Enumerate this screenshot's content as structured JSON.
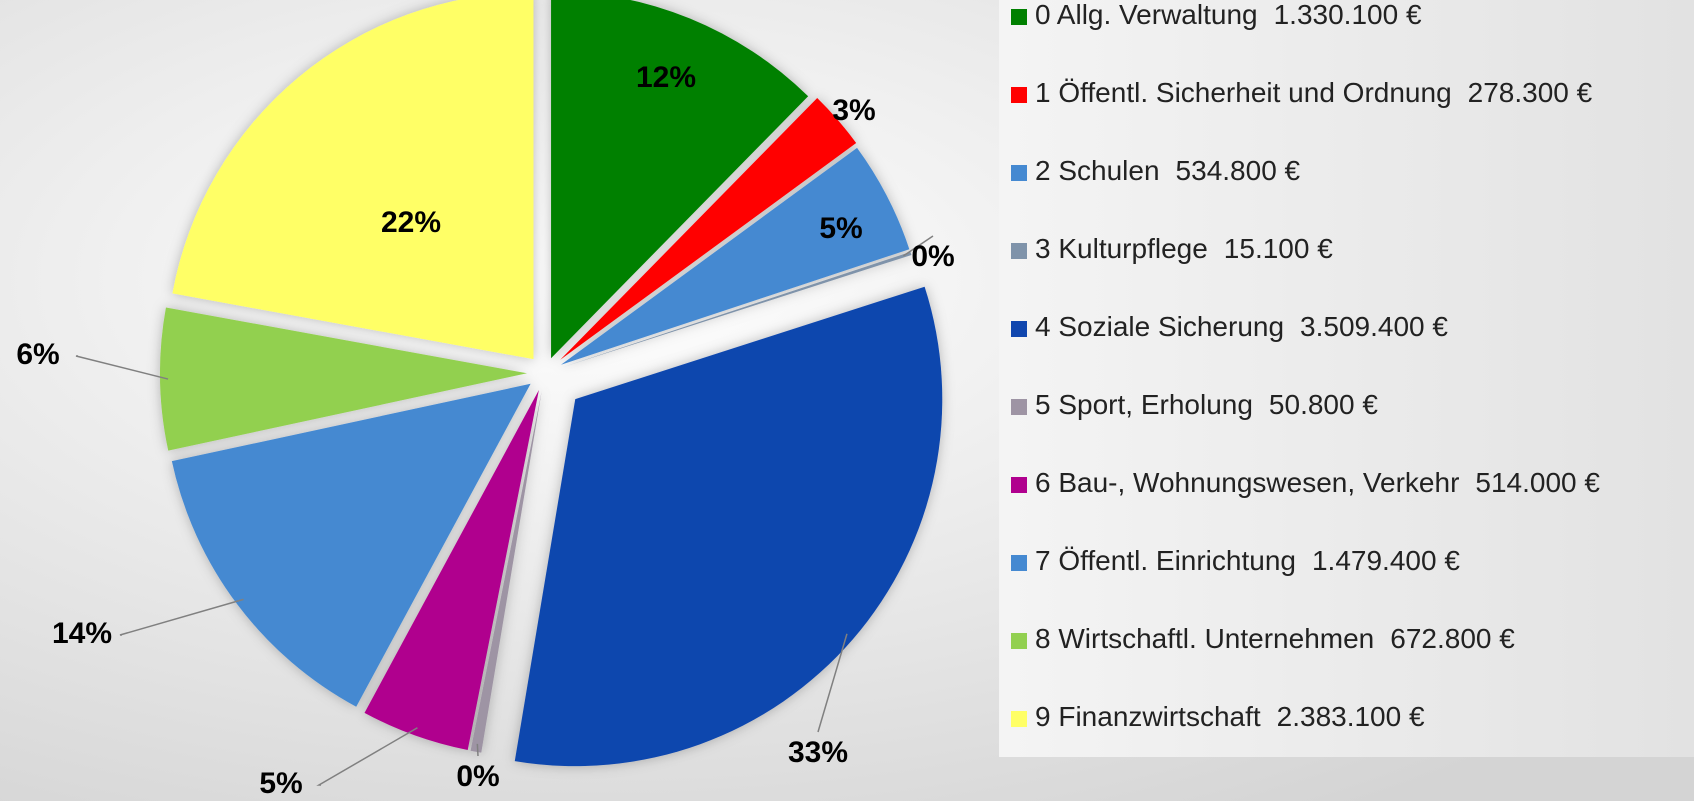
{
  "chart_data": {
    "type": "pie",
    "categories": [
      "0 Allg. Verwaltung",
      "1 Öffentl. Sicherheit und Ordnung",
      "2 Schulen",
      "3 Kulturpflege",
      "4 Soziale Sicherung",
      "5 Sport, Erholung",
      "6 Bau-, Wohnungswesen, Verkehr",
      "7 Öffentl. Einrichtung",
      "8 Wirtschaftl. Unternehmen",
      "9 Finanzwirtschaft"
    ],
    "values": [
      1330100,
      278300,
      534800,
      15100,
      3509400,
      50800,
      514000,
      1479400,
      672800,
      2383100
    ],
    "value_labels": [
      "1.330.100 €",
      "278.300 €",
      "534.800 €",
      "15.100 €",
      "3.509.400 €",
      "50.800 €",
      "514.000 €",
      "1.479.400 €",
      "672.800 €",
      "2.383.100 €"
    ],
    "percent_labels": [
      "12%",
      "3%",
      "5%",
      "0%",
      "33%",
      "0%",
      "5%",
      "14%",
      "6%",
      "22%"
    ],
    "colors": [
      "#008000",
      "#ff0000",
      "#4589d1",
      "#7f93aa",
      "#1046ae",
      "#9e94a4",
      "#b0008e",
      "#4589d1",
      "#92d050",
      "#ffff66"
    ],
    "legend": "right"
  }
}
